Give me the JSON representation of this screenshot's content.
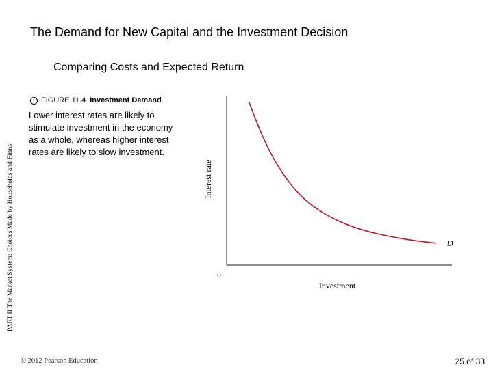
{
  "slide": {
    "title": "The Demand for New Capital and the Investment Decision",
    "subtitle": "Comparing Costs and Expected Return",
    "side_label": "PART II  The Market System: Choices Made by Households and Firms",
    "figure_number": "FIGURE 11.4",
    "figure_name": "Investment Demand",
    "caption": "Lower interest rates are likely to stimulate investment in the economy as a whole, whereas higher interest rates are likely to slow investment.",
    "copyright": "© 2012 Pearson Education",
    "page_number": "25",
    "page_of": "of 33"
  },
  "chart_data": {
    "type": "line",
    "title": "",
    "xlabel": "Investment",
    "ylabel": "Interest rate",
    "origin_label": "0",
    "xlim": [
      0,
      1
    ],
    "ylim": [
      0,
      1
    ],
    "grid": false,
    "series": [
      {
        "name": "D",
        "color": "#b5182b",
        "x": [
          0.1,
          0.14,
          0.18,
          0.22,
          0.27,
          0.32,
          0.38,
          0.45,
          0.53,
          0.62,
          0.72,
          0.83,
          0.93
        ],
        "y": [
          0.96,
          0.82,
          0.7,
          0.6,
          0.5,
          0.42,
          0.35,
          0.29,
          0.24,
          0.2,
          0.17,
          0.145,
          0.13
        ]
      }
    ]
  }
}
